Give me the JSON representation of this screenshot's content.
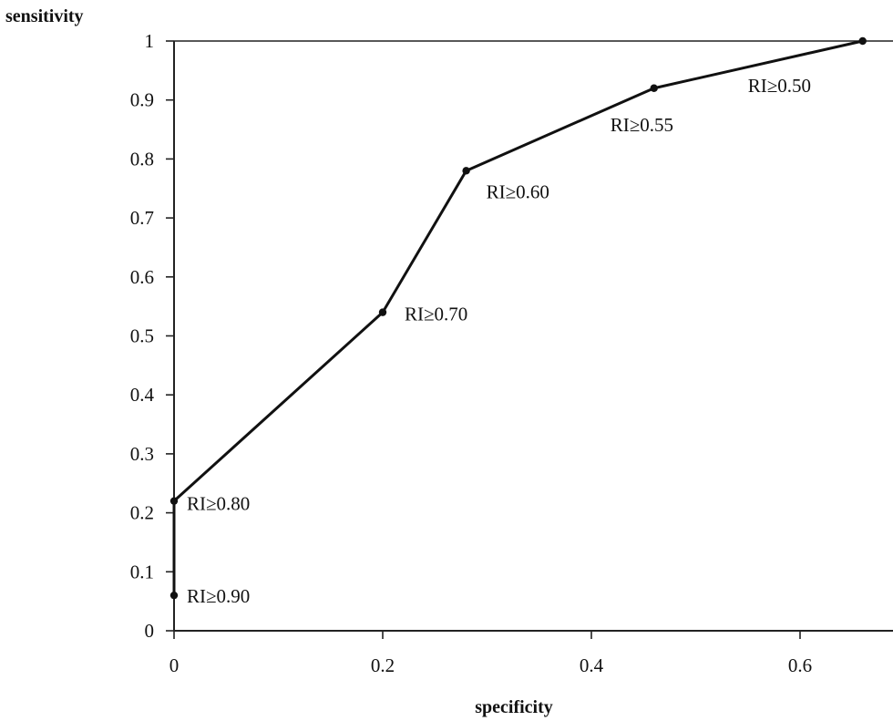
{
  "chart_data": {
    "type": "line",
    "title": "",
    "xlabel": "specificity",
    "ylabel": "sensitivity",
    "xlim": [
      0,
      0.7
    ],
    "ylim": [
      0,
      1
    ],
    "x_ticks": [
      "0",
      "0.2",
      "0.4",
      "0.6"
    ],
    "y_ticks": [
      "0",
      "0.1",
      "0.2",
      "0.3",
      "0.4",
      "0.5",
      "0.6",
      "0.7",
      "0.8",
      "0.9",
      "1"
    ],
    "grid": false,
    "series": [
      {
        "points": [
          {
            "x": 0,
            "y": 0.06,
            "label": "RI≥0.90"
          },
          {
            "x": 0,
            "y": 0.22,
            "label": "RI≥0.80"
          },
          {
            "x": 0.2,
            "y": 0.54,
            "label": "RI≥0.70"
          },
          {
            "x": 0.28,
            "y": 0.78,
            "label": "RI≥0.60"
          },
          {
            "x": 0.46,
            "y": 0.92,
            "label": "RI≥0.55"
          },
          {
            "x": 0.66,
            "y": 1.0,
            "label": "RI≥0.50"
          }
        ]
      }
    ],
    "colors": {
      "line": "#111111",
      "axes": "#222222"
    }
  }
}
